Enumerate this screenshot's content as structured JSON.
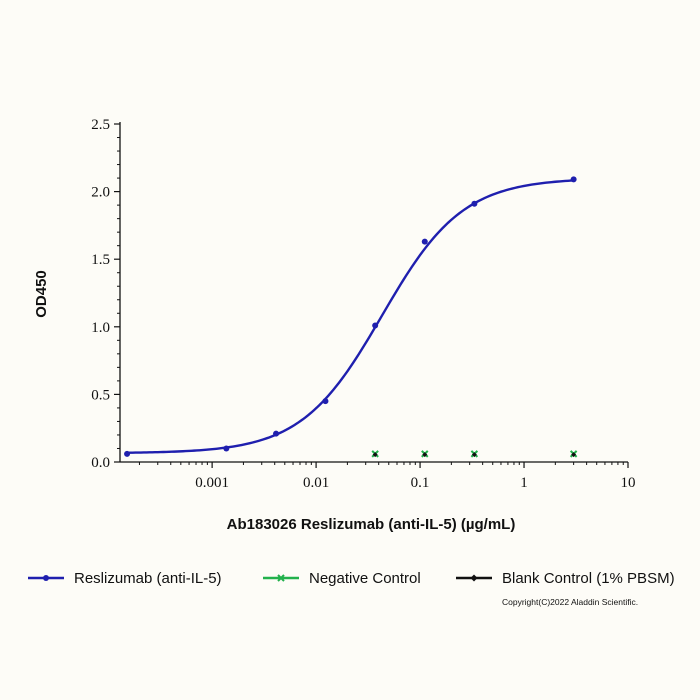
{
  "chart_data": {
    "type": "line",
    "title": "",
    "xlabel": "Ab183026 Reslizumab (anti-IL-5) (µg/mL)",
    "ylabel": "OD450",
    "xscale": "log",
    "xlim": [
      0.00013,
      10
    ],
    "ylim": [
      0,
      2.5
    ],
    "x_ticks": [
      {
        "value": 0.001,
        "label": "0.001"
      },
      {
        "value": 0.01,
        "label": "0.01"
      },
      {
        "value": 0.1,
        "label": "0.1"
      },
      {
        "value": 1,
        "label": "1"
      },
      {
        "value": 10,
        "label": "10"
      }
    ],
    "y_ticks": [
      {
        "value": 0,
        "label": "0.0"
      },
      {
        "value": 0.5,
        "label": "0.5"
      },
      {
        "value": 1.0,
        "label": "1.0"
      },
      {
        "value": 1.5,
        "label": "1.5"
      },
      {
        "value": 2.0,
        "label": "2.0"
      },
      {
        "value": 2.5,
        "label": "2.5"
      }
    ],
    "grid": false,
    "legend_position": "bottom",
    "series": [
      {
        "name": "Reslizumab (anti-IL-5)",
        "color": "#1f1fae",
        "marker": "circle",
        "fit": "sigmoid",
        "x": [
          0.000152,
          0.00137,
          0.00412,
          0.0123,
          0.037,
          0.111,
          0.333,
          3.0
        ],
        "y": [
          0.06,
          0.1,
          0.21,
          0.45,
          1.01,
          1.63,
          1.91,
          2.09
        ]
      },
      {
        "name": "Negative Control",
        "color": "#22b14c",
        "marker": "x",
        "fit": "none",
        "x": [
          0.037,
          0.111,
          0.333,
          3.0
        ],
        "y": [
          0.06,
          0.06,
          0.06,
          0.06
        ]
      },
      {
        "name": "Blank Control (1% PBSM)",
        "color": "#111111",
        "marker": "diamond",
        "fit": "none",
        "x": [
          0.037,
          0.111,
          0.333,
          3.0
        ],
        "y": [
          0.055,
          0.055,
          0.055,
          0.055
        ]
      }
    ]
  },
  "footer": {
    "copyright": "Copyright(C)2022 Aladdin Scientific."
  }
}
